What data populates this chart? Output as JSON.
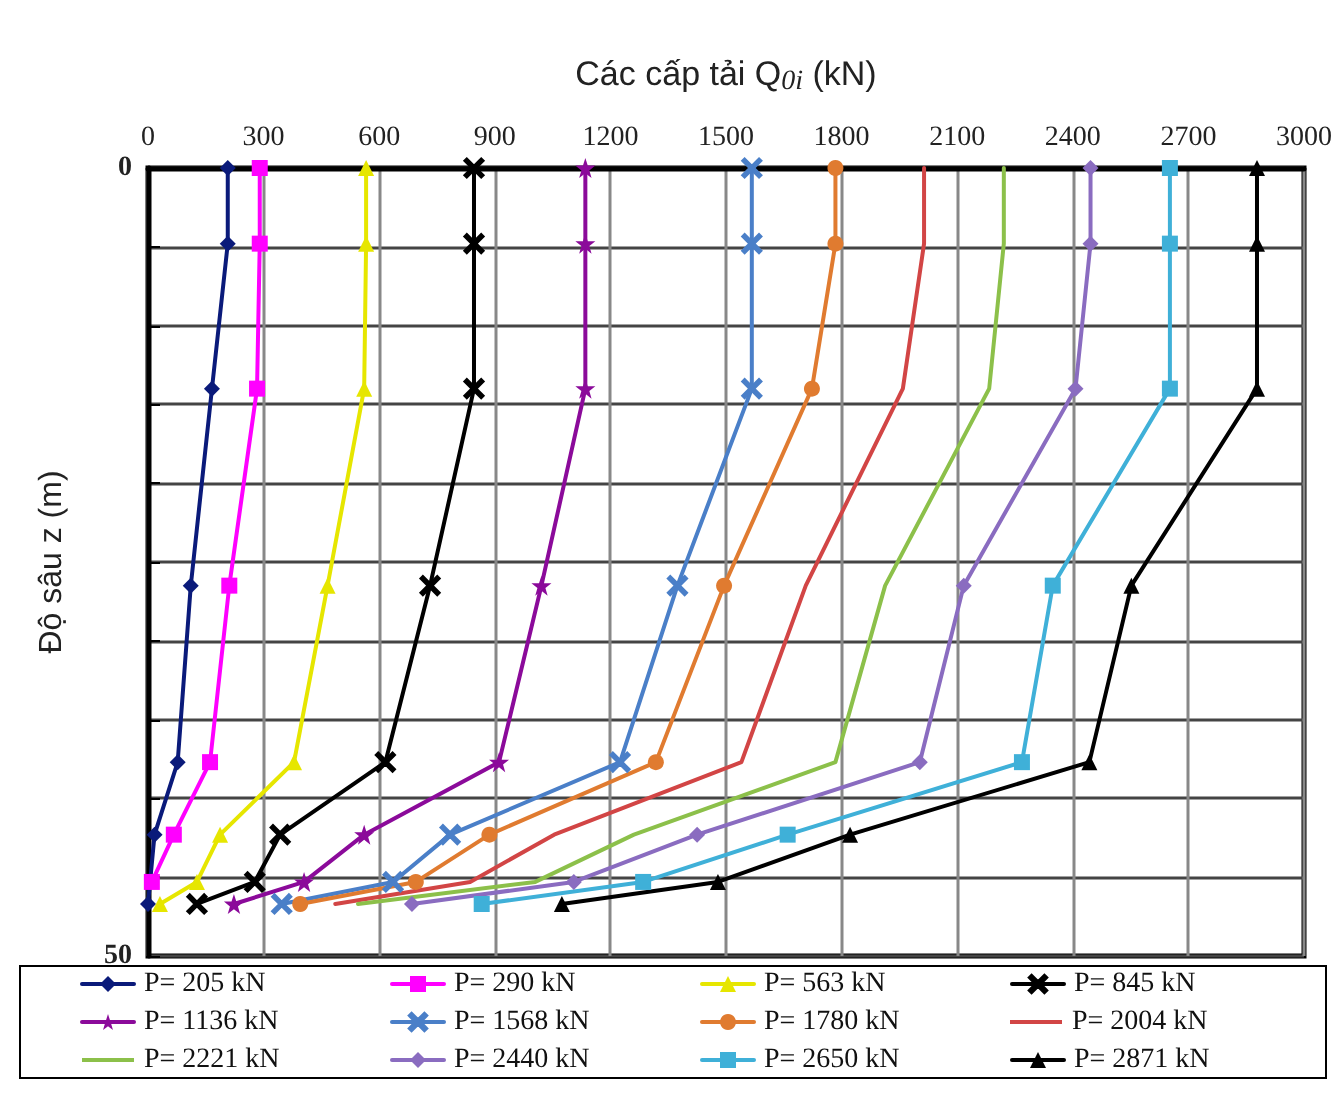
{
  "chart_data": {
    "type": "line",
    "xlabel": "Các cấp tải Q$_{0i}$ (kN)",
    "ylabel": "Độ sâu z (m)",
    "xlim": [
      0,
      3000
    ],
    "xticks": [
      0,
      300,
      600,
      900,
      1200,
      1500,
      1800,
      2100,
      2400,
      2700,
      3000
    ],
    "ylim": [
      50,
      0
    ],
    "yticks": [
      0,
      {
        "value": 5,
        "label": null
      },
      {
        "value": 10,
        "label": null
      },
      {
        "value": 15,
        "label": null
      },
      {
        "value": 20,
        "label": null
      },
      {
        "value": 25,
        "label": null
      },
      {
        "value": 30,
        "label": null
      },
      {
        "value": 35,
        "label": null
      },
      {
        "value": 40,
        "label": null
      },
      {
        "value": 45,
        "label": null
      },
      50
    ],
    "grid": true,
    "legend": "bottom",
    "series": [
      {
        "name": "P= 205 kN",
        "color": "#0a1a7a",
        "marker": "diamond",
        "x": [
          207,
          207,
          166,
          111,
          77,
          17,
          0
        ],
        "values": [
          0,
          4.8,
          14,
          26.5,
          37.7,
          42.3,
          46.7
        ]
      },
      {
        "name": "P= 290 kN",
        "color": "#ff00ff",
        "marker": "square",
        "x": [
          290,
          290,
          283,
          211,
          161,
          67,
          10
        ],
        "values": [
          0,
          4.8,
          14,
          26.5,
          37.7,
          42.3,
          45.3
        ]
      },
      {
        "name": "P= 563 kN",
        "color": "#e6e600",
        "marker": "triangle",
        "x": [
          566,
          566,
          561,
          466,
          379,
          187,
          127,
          31
        ],
        "values": [
          0,
          4.8,
          14,
          26.5,
          37.7,
          42.3,
          45.3,
          46.7
        ]
      },
      {
        "name": "P= 845 kN",
        "color": "#000000",
        "marker": "cross",
        "x": [
          846,
          846,
          846,
          732,
          616,
          343,
          277,
          127
        ],
        "values": [
          0,
          4.8,
          14,
          26.5,
          37.7,
          42.3,
          45.3,
          46.7
        ]
      },
      {
        "name": "P= 1136 kN",
        "color": "#8b0a9a",
        "marker": "star",
        "x": [
          1135,
          1135,
          1135,
          1021,
          911,
          561,
          405,
          223
        ],
        "values": [
          0,
          4.8,
          14,
          26.5,
          37.7,
          42.3,
          45.3,
          46.7
        ]
      },
      {
        "name": "P= 1568 kN",
        "color": "#4a7fc8",
        "marker": "cross",
        "x": [
          1567,
          1567,
          1567,
          1374,
          1225,
          784,
          636,
          347
        ],
        "values": [
          0,
          4.8,
          14,
          26.5,
          37.7,
          42.3,
          45.3,
          46.7
        ]
      },
      {
        "name": "P= 1780 kN",
        "color": "#e07b30",
        "marker": "circle",
        "x": [
          1784,
          1784,
          1723,
          1495,
          1318,
          886,
          695,
          395
        ],
        "values": [
          0,
          4.8,
          14,
          26.5,
          37.7,
          42.3,
          45.3,
          46.7
        ]
      },
      {
        "name": "P= 2004 kN",
        "color": "#d24545",
        "marker": "none",
        "x": [
          2014,
          2014,
          1959,
          1707,
          1540,
          1054,
          836,
          486
        ],
        "values": [
          0,
          4.8,
          14,
          26.5,
          37.7,
          42.3,
          45.3,
          46.7
        ]
      },
      {
        "name": "P= 2221 kN",
        "color": "#8cc04a",
        "marker": "none",
        "x": [
          2221,
          2221,
          2183,
          1913,
          1784,
          1261,
          1005,
          545
        ],
        "values": [
          0,
          4.8,
          14,
          26.5,
          37.7,
          42.3,
          45.3,
          46.7
        ]
      },
      {
        "name": "P= 2440 kN",
        "color": "#8a6cc0",
        "marker": "diamond",
        "x": [
          2446,
          2446,
          2407,
          2117,
          2003,
          1425,
          1105,
          685
        ],
        "values": [
          0,
          4.8,
          14,
          26.5,
          37.7,
          42.3,
          45.3,
          46.7
        ]
      },
      {
        "name": "P= 2650 kN",
        "color": "#3fb0d8",
        "marker": "square",
        "x": [
          2652,
          2652,
          2652,
          2348,
          2268,
          1660,
          1285,
          866
        ],
        "values": [
          0,
          4.8,
          14,
          26.5,
          37.7,
          42.3,
          45.3,
          46.7
        ]
      },
      {
        "name": "P= 2871 kN",
        "color": "#000000",
        "marker": "triangle",
        "x": [
          2878,
          2878,
          2878,
          2552,
          2443,
          1822,
          1479,
          1074
        ],
        "values": [
          0,
          4.8,
          14,
          26.5,
          37.7,
          42.3,
          45.3,
          46.7
        ]
      }
    ]
  }
}
